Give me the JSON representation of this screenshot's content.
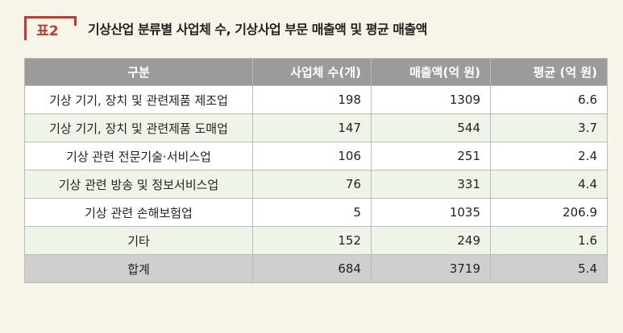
{
  "caption": {
    "label": "표2",
    "title": "기상산업 분류별 사업체 수, 기상사업 부문 매출액 및 평균 매출액"
  },
  "table": {
    "headers": [
      "구분",
      "사업체 수(개)",
      "매출액(억 원)",
      "평균 (억 원)"
    ],
    "rows": [
      {
        "name": "기상 기기, 장치 및 관련제품 제조업",
        "count": "198",
        "sales": "1309",
        "avg": "6.6"
      },
      {
        "name": "기상 기기, 장치 및 관련제품 도매업",
        "count": "147",
        "sales": "544",
        "avg": "3.7"
      },
      {
        "name": "기상 관련 전문기술·서비스업",
        "count": "106",
        "sales": "251",
        "avg": "2.4"
      },
      {
        "name": "기상 관련 방송 및 정보서비스업",
        "count": "76",
        "sales": "331",
        "avg": "4.4"
      },
      {
        "name": "기상 관련 손해보험업",
        "count": "5",
        "sales": "1035",
        "avg": "206.9"
      },
      {
        "name": "기타",
        "count": "152",
        "sales": "249",
        "avg": "1.6"
      }
    ],
    "total": {
      "name": "합계",
      "count": "684",
      "sales": "3719",
      "avg": "5.4"
    }
  }
}
